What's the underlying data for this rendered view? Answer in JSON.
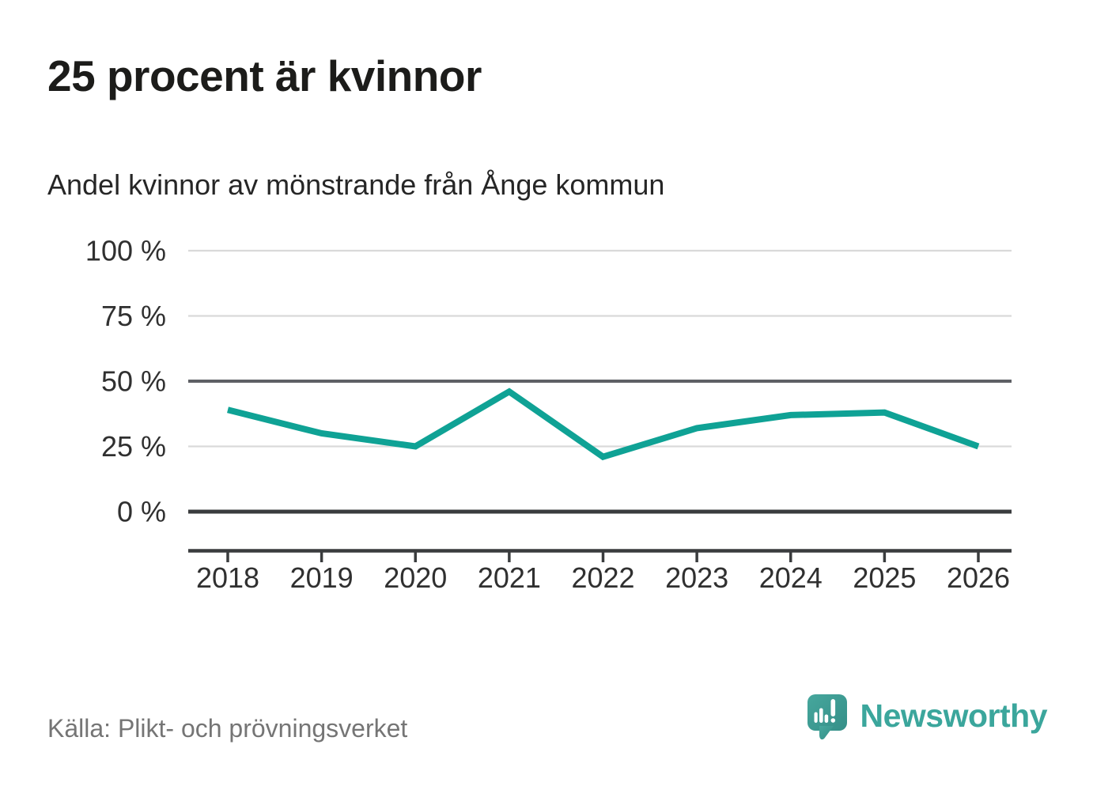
{
  "header": {
    "title": "25 procent är kvinnor",
    "subtitle": "Andel kvinnor av mönstrande från Ånge kommun"
  },
  "footer": {
    "source": "Källa: Plikt- och prövningsverket",
    "brand_name": "Newsworthy"
  },
  "colors": {
    "line": "#0fa295",
    "brand": "#3ba69c",
    "grid_light": "#d9d9d9",
    "grid_mid": "#5e6065",
    "axis_dark": "#3a3c3e",
    "text_axis": "#303030",
    "text_title": "#1c1c1a",
    "text_muted": "#757575"
  },
  "chart_data": {
    "type": "line",
    "title": "25 procent är kvinnor",
    "subtitle": "Andel kvinnor av mönstrande från Ånge kommun",
    "categories": [
      "2018",
      "2019",
      "2020",
      "2021",
      "2022",
      "2023",
      "2024",
      "2025",
      "2026"
    ],
    "values": [
      39,
      30,
      25,
      46,
      21,
      32,
      37,
      38,
      25
    ],
    "unit": "%",
    "xlabel": "",
    "ylabel": "",
    "ylim": [
      0,
      100
    ],
    "yticks": [
      0,
      25,
      50,
      75,
      100
    ],
    "ytick_labels": [
      "0 %",
      "25 %",
      "50 %",
      "75 %",
      "100 %"
    ],
    "grid": "horizontal",
    "legend": "none",
    "emphasized_gridlines": [
      0,
      50
    ],
    "source": "Källa: Plikt- och prövningsverket"
  }
}
